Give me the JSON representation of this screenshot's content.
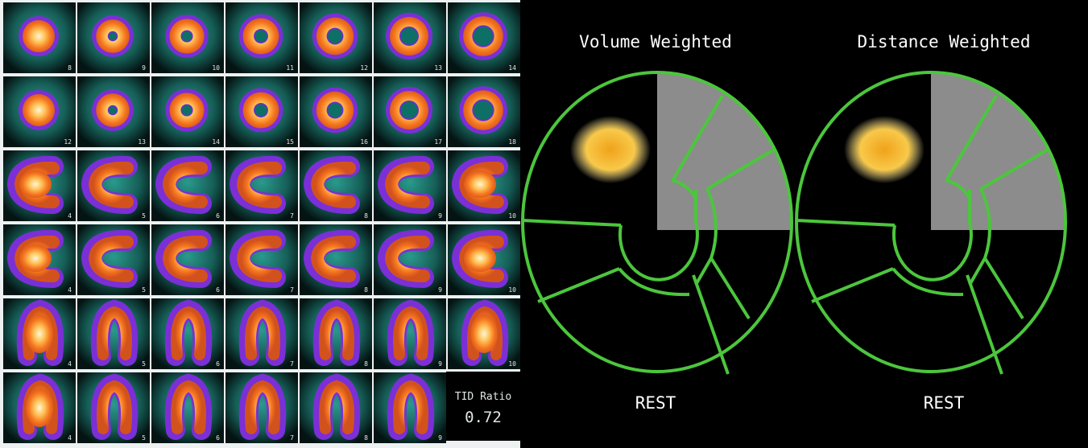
{
  "slice_panel": {
    "rows": [
      {
        "numbers": [
          "8",
          "9",
          "10",
          "11",
          "12",
          "13",
          "14"
        ],
        "shape": "ring",
        "fill": [
          0.6,
          0.5,
          0.4,
          0.3,
          0.25,
          0.2,
          0.15
        ]
      },
      {
        "numbers": [
          "12",
          "13",
          "14",
          "15",
          "16",
          "17",
          "18"
        ],
        "shape": "ring",
        "fill": [
          0.7,
          0.45,
          0.35,
          0.3,
          0.25,
          0.2,
          0.15
        ]
      },
      {
        "numbers": [
          "4",
          "5",
          "6",
          "7",
          "8",
          "9",
          "10"
        ],
        "shape": "horseshoe",
        "fill": [
          0.9,
          0.6,
          0.3,
          0.3,
          0.3,
          0.4,
          0.7
        ]
      },
      {
        "numbers": [
          "4",
          "5",
          "6",
          "7",
          "8",
          "9",
          "10"
        ],
        "shape": "horseshoe",
        "fill": [
          0.9,
          0.6,
          0.3,
          0.3,
          0.3,
          0.4,
          0.7
        ]
      },
      {
        "numbers": [
          "4",
          "5",
          "6",
          "7",
          "8",
          "9",
          "10"
        ],
        "shape": "vertical",
        "fill": [
          0.9,
          0.6,
          0.3,
          0.3,
          0.3,
          0.4,
          0.7
        ]
      },
      {
        "numbers": [
          "4",
          "5",
          "6",
          "7",
          "8",
          "9"
        ],
        "shape": "vertical",
        "fill": [
          0.9,
          0.6,
          0.3,
          0.3,
          0.3,
          0.4
        ]
      }
    ],
    "tid": {
      "label": "TID Ratio",
      "value": "0.72"
    }
  },
  "polar_maps": [
    {
      "title": "Volume Weighted",
      "subtitle": "REST"
    },
    {
      "title": "Distance Weighted",
      "subtitle": "REST"
    }
  ],
  "colors": {
    "outline": "#4cc63d",
    "background": "#000000",
    "teal": "#1d7f77"
  }
}
